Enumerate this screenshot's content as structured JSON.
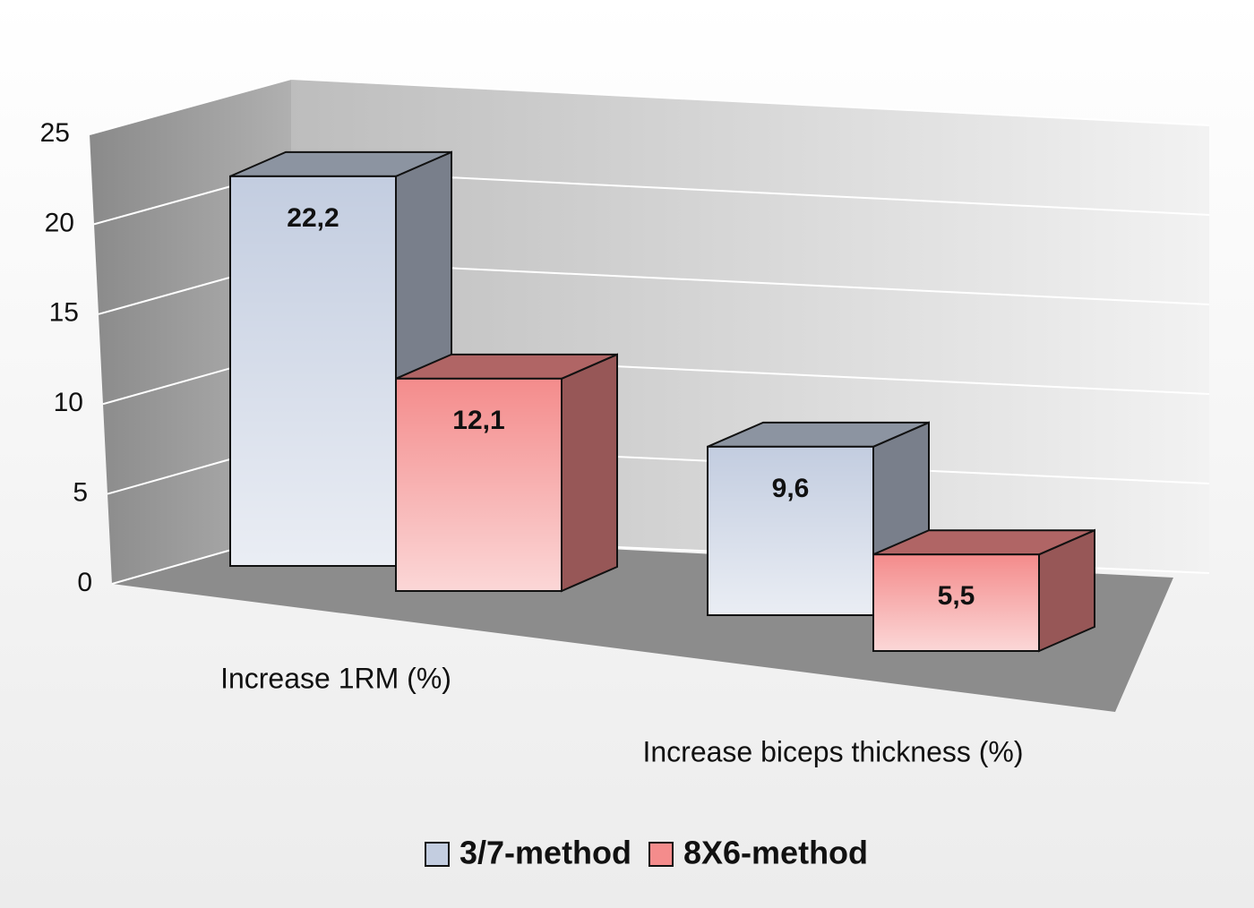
{
  "chart_data": {
    "type": "bar3d",
    "categories": [
      "Increase 1RM (%)",
      "Increase biceps thickness (%)"
    ],
    "series": [
      {
        "name": "3/7-method",
        "color": "#c3cde0",
        "values": [
          22.2,
          9.6
        ],
        "value_labels": [
          "22,2",
          "9,6"
        ]
      },
      {
        "name": "8X6-method",
        "color": "#f48c8c",
        "values": [
          12.1,
          5.5
        ],
        "value_labels": [
          "12,1",
          "5,5"
        ]
      }
    ],
    "ylim": [
      0,
      25
    ],
    "yticks": [
      0,
      5,
      10,
      15,
      20,
      25
    ],
    "grid": true
  }
}
